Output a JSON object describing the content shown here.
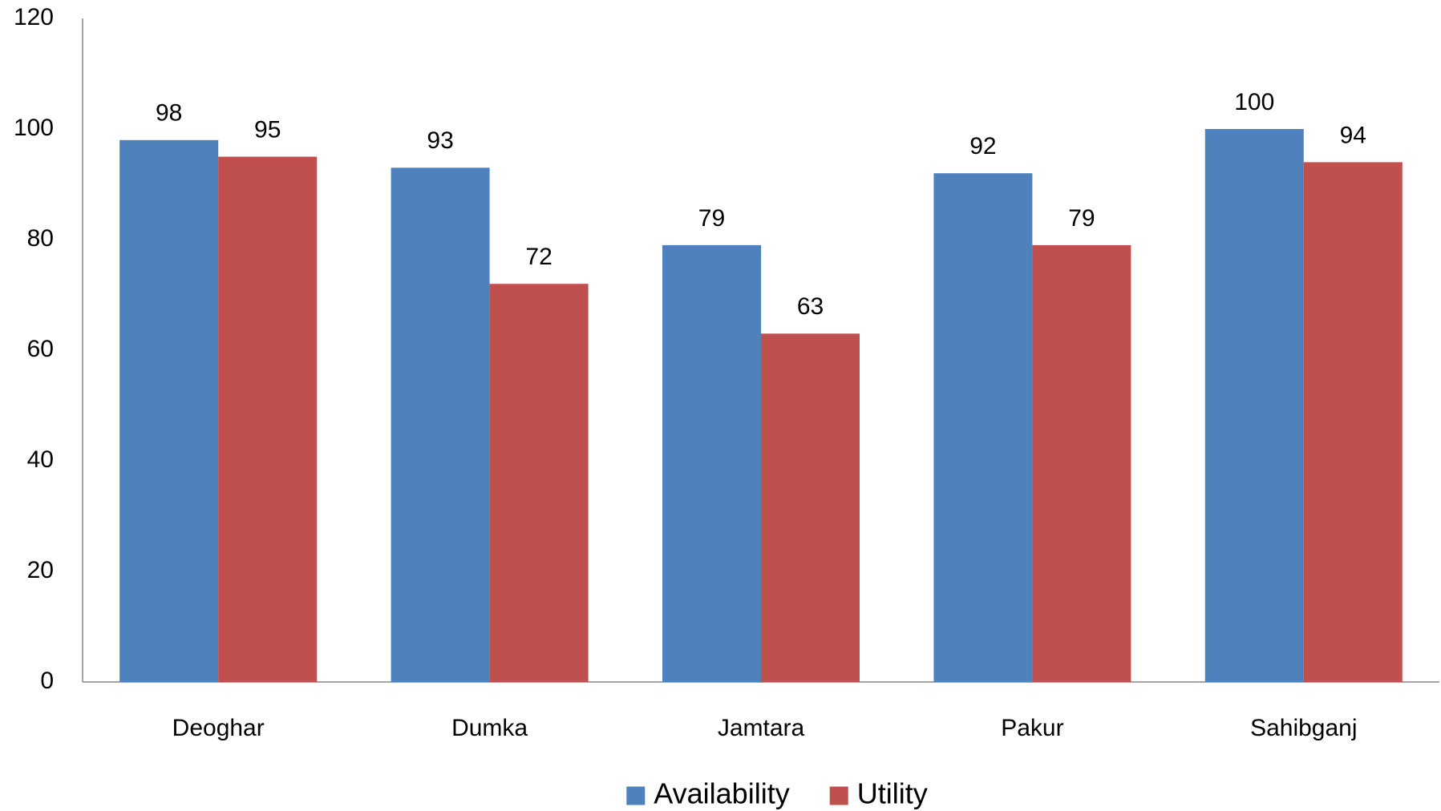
{
  "chart_data": {
    "type": "bar",
    "categories": [
      "Deoghar",
      "Dumka",
      "Jamtara",
      "Pakur",
      "Sahibganj"
    ],
    "series": [
      {
        "name": "Availability",
        "color": "#4f81bd",
        "values": [
          98,
          93,
          79,
          92,
          100
        ]
      },
      {
        "name": "Utility",
        "color": "#c0504d",
        "values": [
          95,
          72,
          63,
          79,
          94
        ]
      }
    ],
    "ylim": [
      0,
      120
    ],
    "yticks": [
      0,
      20,
      40,
      60,
      80,
      100,
      120
    ],
    "grid": false,
    "legend": "bottom"
  }
}
